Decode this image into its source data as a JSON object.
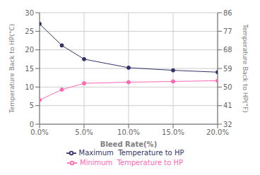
{
  "chart_data": {
    "type": "line",
    "x": [
      0.0,
      0.025,
      0.05,
      0.1,
      0.15,
      0.2
    ],
    "xlabel": "Bleed Rate(%)",
    "ylabel": "Temperature Back to HP(°C)",
    "y2label": "Temperature Back to HP(°F)",
    "xlim": [
      0.0,
      0.2
    ],
    "xticks": [
      {
        "value": 0.0,
        "label": "0.0%"
      },
      {
        "value": 0.05,
        "label": "5.0%"
      },
      {
        "value": 0.1,
        "label": "10.0%"
      },
      {
        "value": 0.15,
        "label": "15.0%"
      },
      {
        "value": 0.2,
        "label": "20.0%"
      }
    ],
    "ylim": [
      0,
      30
    ],
    "yticks": [
      0,
      5,
      10,
      15,
      20,
      25,
      30
    ],
    "y2lim": [
      32,
      86
    ],
    "y2ticks": [
      32,
      41,
      50,
      59,
      68,
      77,
      86
    ],
    "grid": true,
    "legend": "bottom",
    "series": [
      {
        "name": "Minimum  Temperature to HP",
        "color": "#ff69b4",
        "marker": "circle",
        "line_style": "solid",
        "values": [
          6.5,
          9.3,
          11.0,
          11.3,
          11.5,
          11.7
        ]
      },
      {
        "name": "Maximum  Temperature to HP",
        "color": "#33336b",
        "marker": "circle",
        "line_style": "solid",
        "values": [
          27.0,
          21.2,
          17.5,
          15.2,
          14.5,
          14.0
        ]
      }
    ]
  }
}
